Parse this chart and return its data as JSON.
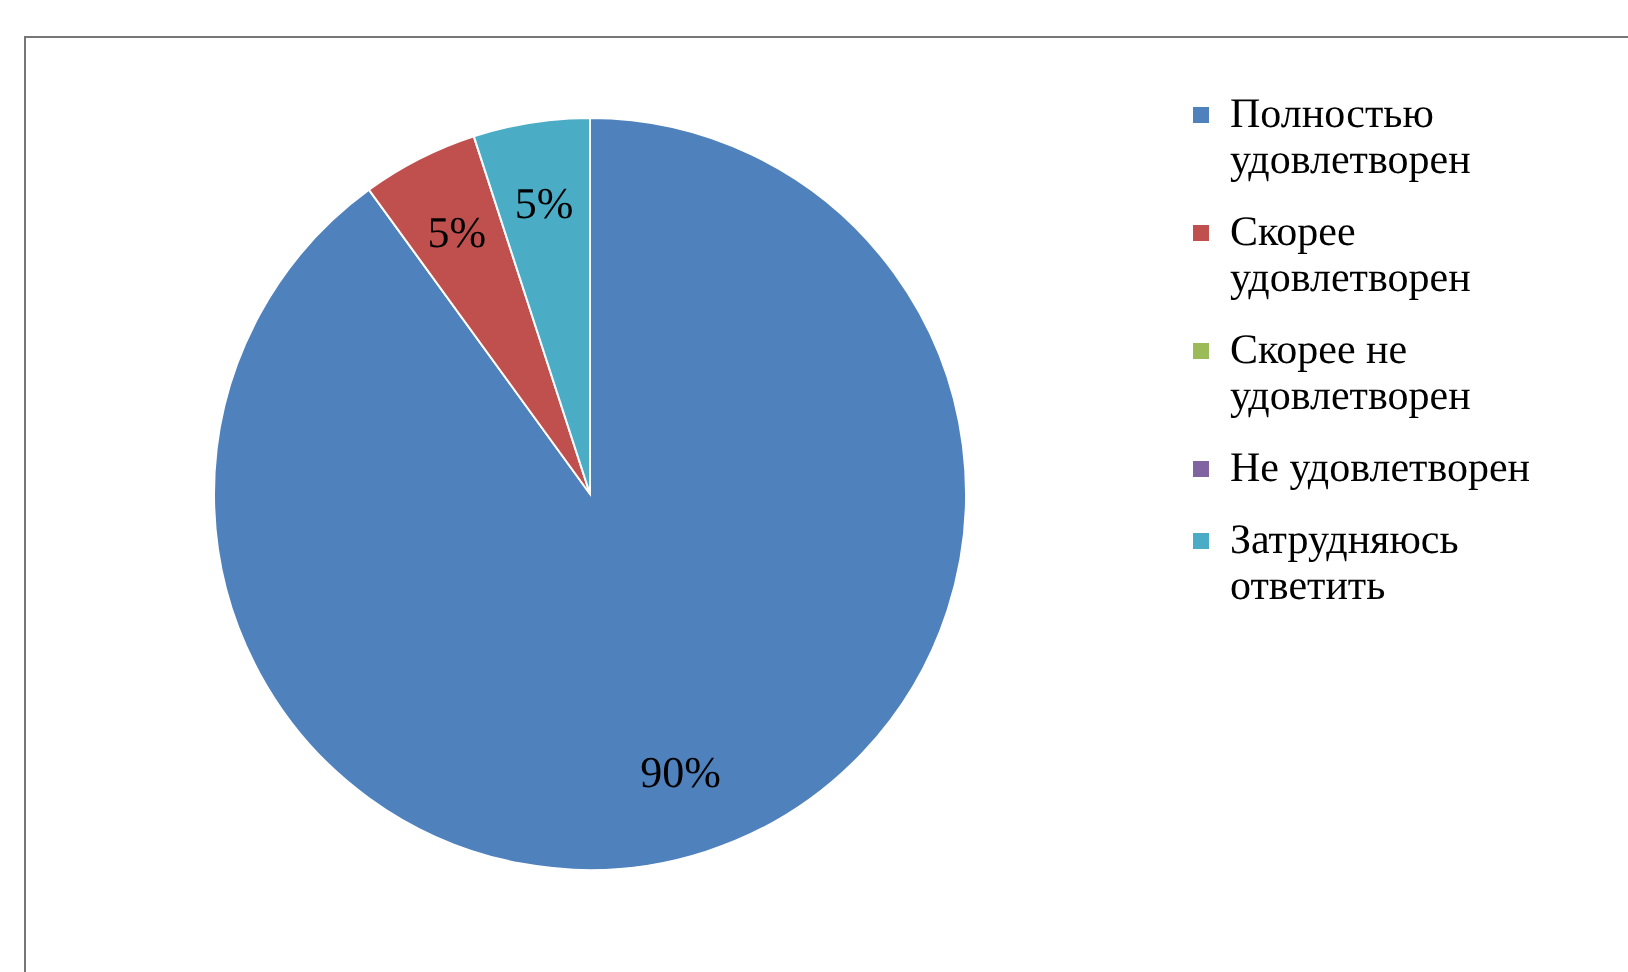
{
  "chart_data": {
    "type": "pie",
    "categories": [
      "Полностью удовлетворен",
      "Скорее удовлетворен",
      "Скорее не удовлетворен",
      "Не удовлетворен",
      "Затрудняюсь ответить"
    ],
    "values": [
      90,
      5,
      0,
      0,
      5
    ],
    "colors": [
      "#4f81bd",
      "#c0504d",
      "#9bbb59",
      "#8064a2",
      "#4bacc6"
    ],
    "value_labels": [
      "90%",
      "5%",
      null,
      null,
      "5%"
    ],
    "legend": "right"
  }
}
